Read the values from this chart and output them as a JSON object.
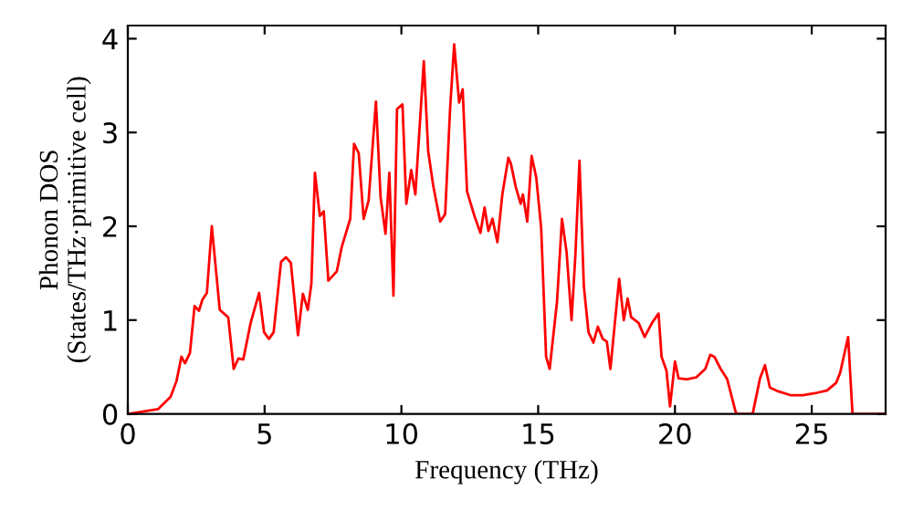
{
  "chart_data": {
    "type": "line",
    "xlabel": "Frequency (THz)",
    "ylabel": "Phonon DOS\n(States/THz·primitive cell)",
    "xlim": [
      0,
      27.7
    ],
    "ylim": [
      0,
      4.14
    ],
    "xticks": [
      0,
      5,
      10,
      15,
      20,
      25
    ],
    "yticks": [
      0,
      1,
      2,
      3,
      4
    ],
    "grid": false,
    "marker": "none",
    "line_style": "solid",
    "series": [
      {
        "color": "#ff0000",
        "x": [
          0,
          1.1,
          1.56,
          1.78,
          1.96,
          2.09,
          2.27,
          2.44,
          2.6,
          2.73,
          2.89,
          3.07,
          3.36,
          3.67,
          3.87,
          4.04,
          4.22,
          4.49,
          4.8,
          4.98,
          5.16,
          5.33,
          5.6,
          5.78,
          5.96,
          6.22,
          6.4,
          6.58,
          6.71,
          6.84,
          7.02,
          7.16,
          7.33,
          7.64,
          7.82,
          8.13,
          8.27,
          8.44,
          8.62,
          8.8,
          9.07,
          9.24,
          9.42,
          9.56,
          9.71,
          9.84,
          10.04,
          10.18,
          10.36,
          10.51,
          10.82,
          10.98,
          11.16,
          11.29,
          11.42,
          11.6,
          11.78,
          11.93,
          12.11,
          12.24,
          12.4,
          12.67,
          12.89,
          13.04,
          13.18,
          13.33,
          13.51,
          13.69,
          13.91,
          14.0,
          14.18,
          14.36,
          14.44,
          14.6,
          14.76,
          14.93,
          15.11,
          15.29,
          15.42,
          15.69,
          15.87,
          16.04,
          16.22,
          16.36,
          16.51,
          16.67,
          16.84,
          17.02,
          17.18,
          17.36,
          17.51,
          17.64,
          17.96,
          18.13,
          18.27,
          18.4,
          18.67,
          18.89,
          19.16,
          19.4,
          19.51,
          19.69,
          19.82,
          20.0,
          20.13,
          20.44,
          20.78,
          21.11,
          21.29,
          21.44,
          21.67,
          21.91,
          22.22,
          22.27,
          22.84,
          23.11,
          23.29,
          23.47,
          23.78,
          24.22,
          24.67,
          25.11,
          25.56,
          25.89,
          26.04,
          26.33,
          26.49,
          27.69
        ],
        "values": [
          0,
          0.05,
          0.18,
          0.35,
          0.61,
          0.54,
          0.65,
          1.15,
          1.1,
          1.22,
          1.29,
          2.0,
          1.11,
          1.03,
          0.48,
          0.59,
          0.58,
          0.97,
          1.29,
          0.87,
          0.8,
          0.87,
          1.62,
          1.67,
          1.61,
          0.84,
          1.28,
          1.11,
          1.39,
          2.57,
          2.11,
          2.16,
          1.42,
          1.52,
          1.78,
          2.08,
          2.88,
          2.78,
          2.08,
          2.27,
          3.33,
          2.31,
          1.92,
          2.57,
          1.26,
          3.25,
          3.3,
          2.24,
          2.6,
          2.34,
          3.76,
          2.8,
          2.44,
          2.24,
          2.05,
          2.13,
          3.25,
          3.94,
          3.32,
          3.46,
          2.37,
          2.11,
          1.93,
          2.2,
          1.95,
          2.08,
          1.83,
          2.34,
          2.73,
          2.67,
          2.42,
          2.24,
          2.34,
          2.05,
          2.75,
          2.52,
          1.98,
          0.61,
          0.48,
          1.2,
          2.08,
          1.72,
          1.0,
          1.69,
          2.7,
          1.36,
          0.87,
          0.76,
          0.93,
          0.8,
          0.77,
          0.48,
          1.44,
          1.0,
          1.23,
          1.03,
          0.97,
          0.82,
          0.97,
          1.07,
          0.61,
          0.46,
          0.08,
          0.56,
          0.38,
          0.37,
          0.39,
          0.48,
          0.63,
          0.61,
          0.48,
          0.37,
          0.02,
          0,
          0,
          0.38,
          0.52,
          0.28,
          0.24,
          0.2,
          0.2,
          0.22,
          0.25,
          0.33,
          0.44,
          0.82,
          0,
          0
        ]
      }
    ]
  }
}
